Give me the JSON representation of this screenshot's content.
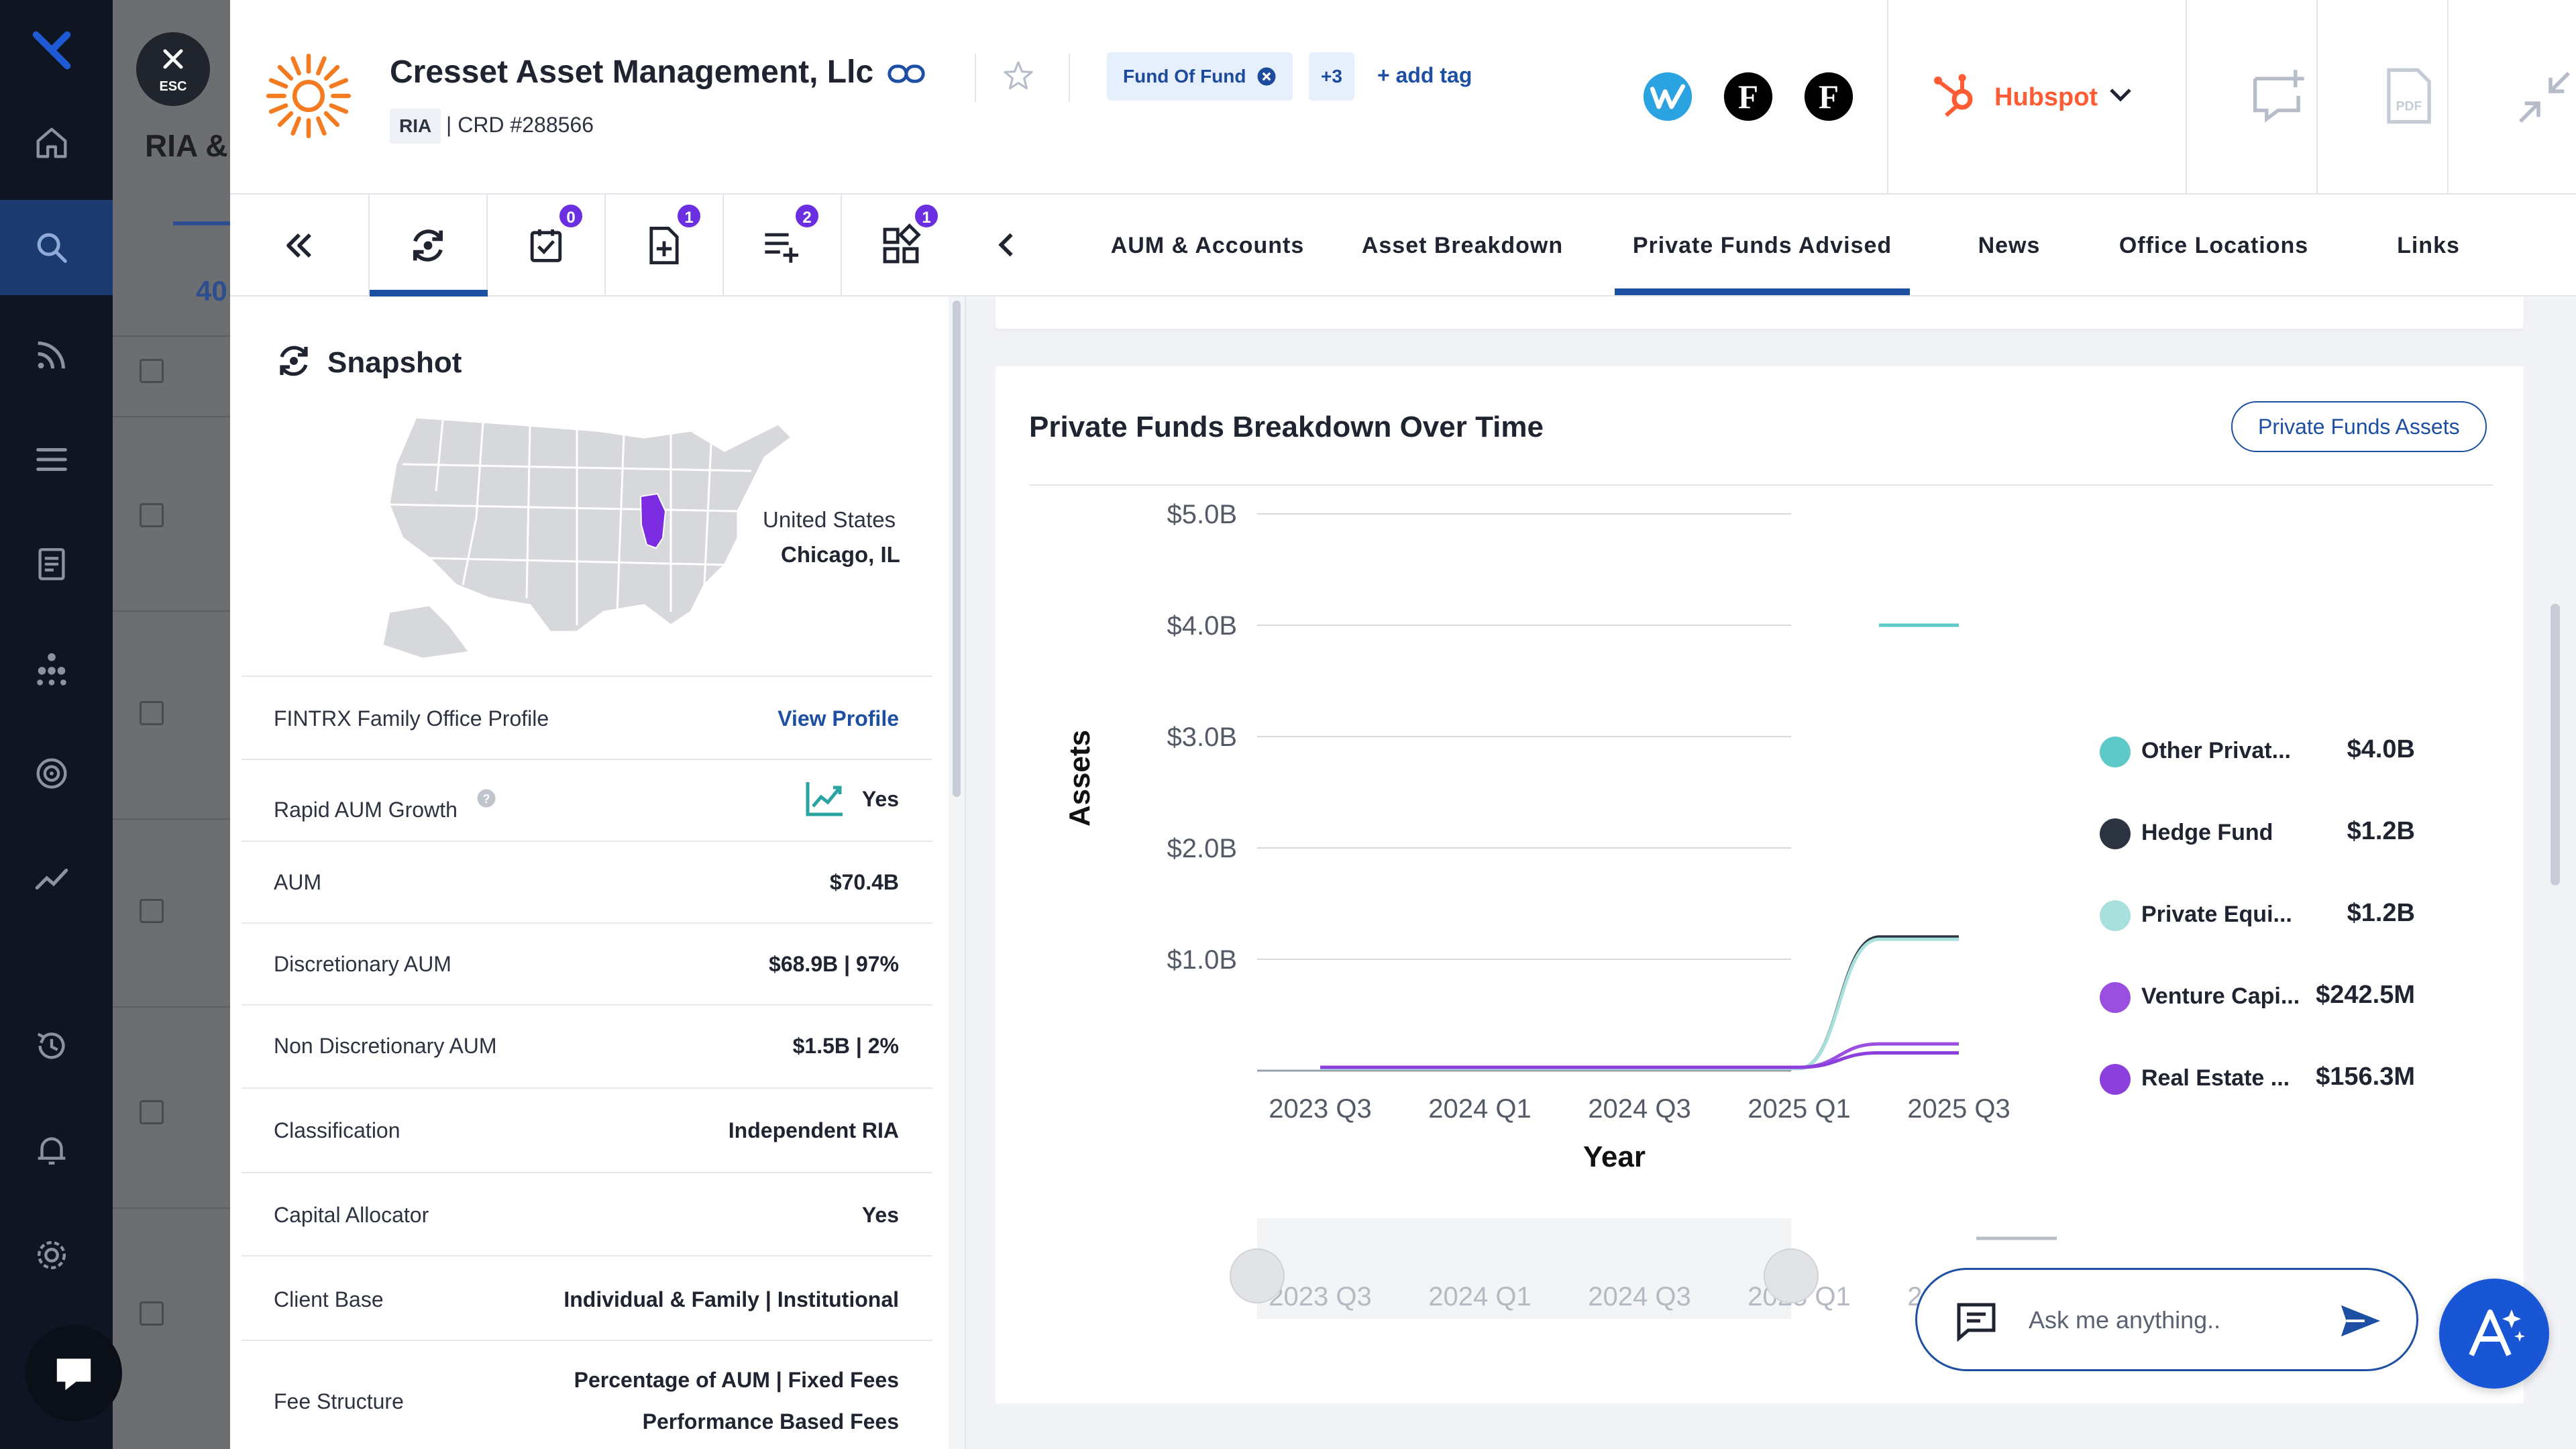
{
  "global_nav": {
    "icons": [
      "logo-x-icon",
      "home-icon",
      "search-icon",
      "feed-icon",
      "list-icon",
      "document-icon",
      "org-chart-icon",
      "target-icon",
      "trend-icon",
      "history-icon",
      "alarm-icon",
      "settings-icon"
    ]
  },
  "background": {
    "title": "RIA &",
    "value": "40"
  },
  "esc": {
    "label": "ESC"
  },
  "header": {
    "company_name": "Cresset Asset Management, Llc",
    "type_badge": "RIA",
    "crd": "| CRD #288566",
    "tags": [
      "Fund Of Fund"
    ],
    "more_tags": "+3",
    "add_tag": "+ add tag",
    "crm": "Hubspot",
    "colors": {
      "brand_orange": "#f47b20",
      "hubspot": "#ff5c35",
      "accent_blue": "#1d4fa3"
    }
  },
  "subnav": {
    "badges": [
      "0",
      "1",
      "2",
      "1"
    ],
    "tabs": [
      "AUM & Accounts",
      "Asset Breakdown",
      "Private Funds Advised",
      "News",
      "Office Locations",
      "Links"
    ],
    "active_tab": "Private Funds Advised"
  },
  "snapshot": {
    "title": "Snapshot",
    "map_country": "United States",
    "map_city": "Chicago, IL",
    "rows": [
      {
        "label": "FINTRX Family Office Profile",
        "value": "View Profile"
      },
      {
        "label": "Rapid AUM Growth",
        "value": "Yes"
      },
      {
        "label": "AUM",
        "value": "$70.4B"
      },
      {
        "label": "Discretionary AUM",
        "value": "$68.9B | 97%"
      },
      {
        "label": "Non Discretionary AUM",
        "value": "$1.5B | 2%"
      },
      {
        "label": "Classification",
        "value": "Independent RIA"
      },
      {
        "label": "Capital Allocator",
        "value": "Yes"
      },
      {
        "label": "Client Base",
        "value": "Individual & Family | Institutional"
      },
      {
        "label": "Fee Structure",
        "value": "Percentage of AUM | Fixed Fees",
        "value2": "Performance Based Fees"
      }
    ]
  },
  "chart_section": {
    "title": "Private Funds Breakdown Over Time",
    "button": "Private Funds Assets"
  },
  "chart_data": {
    "type": "line",
    "title": "Private Funds Breakdown Over Time",
    "xlabel": "Year",
    "ylabel": "Assets",
    "x_ticks": [
      "2023 Q3",
      "2024 Q1",
      "2024 Q3",
      "2025 Q1",
      "2025 Q3"
    ],
    "y_ticks": [
      "$5.0B",
      "$4.0B",
      "$3.0B",
      "$2.0B",
      "$1.0B"
    ],
    "ylim": [
      0,
      5.0
    ],
    "grid": true,
    "legend_position": "right",
    "x": [
      "2023 Q3",
      "2024 Q1",
      "2024 Q3",
      "2025 Q1",
      "2025 Q2",
      "2025 Q3"
    ],
    "series": [
      {
        "name": "Other Privat...",
        "legend_value": "$4.0B",
        "color": "#5ec9c9",
        "values": [
          null,
          null,
          null,
          null,
          4.0,
          4.0
        ]
      },
      {
        "name": "Hedge Fund",
        "legend_value": "$1.2B",
        "color": "#2b3440",
        "values": [
          0.02,
          0.02,
          0.02,
          0.02,
          1.2,
          1.2
        ]
      },
      {
        "name": "Private Equi...",
        "legend_value": "$1.2B",
        "color": "#a8e0dd",
        "values": [
          0.02,
          0.02,
          0.02,
          0.02,
          1.18,
          1.18
        ]
      },
      {
        "name": "Venture Capi...",
        "legend_value": "$242.5M",
        "color": "#9b4fe0",
        "values": [
          0.03,
          0.03,
          0.03,
          0.03,
          0.24,
          0.24
        ]
      },
      {
        "name": "Real Estate ...",
        "legend_value": "$156.3M",
        "color": "#8b3fdc",
        "values": [
          0.03,
          0.03,
          0.03,
          0.03,
          0.16,
          0.16
        ]
      }
    ],
    "range_ticks": [
      "2023 Q3",
      "2024 Q1",
      "2024 Q3",
      "2025 Q1",
      "2025 Q3"
    ]
  },
  "ask": {
    "placeholder": "Ask me anything.."
  }
}
